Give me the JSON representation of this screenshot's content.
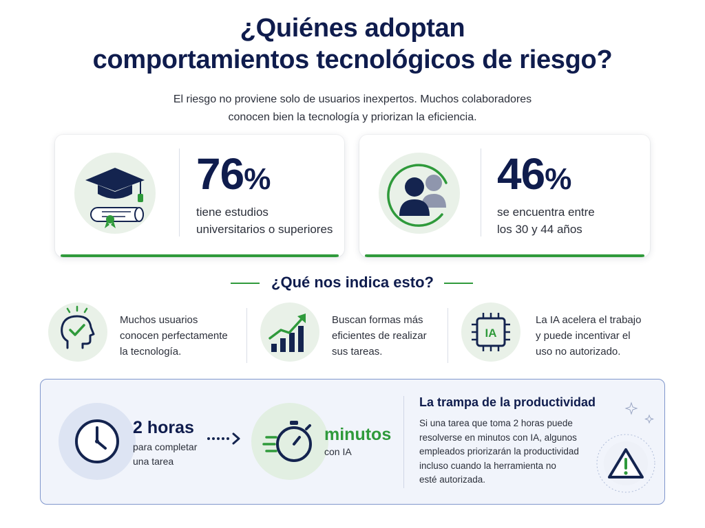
{
  "header": {
    "title_line1": "¿Quiénes adoptan",
    "title_line2": "comportamientos tecnológicos de riesgo?",
    "subtitle_line1": "El riesgo no proviene solo de usuarios inexpertos. Muchos colaboradores",
    "subtitle_line2": "conocen bien la tecnología y priorizan la eficiencia."
  },
  "stats": [
    {
      "icon": "graduation-cap-diploma-icon",
      "value": "76",
      "unit": "%",
      "desc_line1": "tiene estudios",
      "desc_line2": "universitarios o superiores"
    },
    {
      "icon": "people-group-icon",
      "value": "46",
      "unit": "%",
      "desc_line1": "se encuentra entre",
      "desc_line2": "los 30 y 44 años"
    }
  ],
  "section": {
    "heading": "¿Qué nos indica esto?"
  },
  "insights": [
    {
      "icon": "head-check-icon",
      "lines": [
        "Muchos usuarios",
        "conocen perfectamente",
        "la tecnología."
      ]
    },
    {
      "icon": "growth-chart-icon",
      "lines": [
        "Buscan formas más",
        "eficientes de realizar",
        "sus tareas."
      ]
    },
    {
      "icon": "ai-chip-icon",
      "chip_label": "IA",
      "lines": [
        "La IA acelera el trabajo",
        "y puede incentivar el",
        "uso no autorizado."
      ]
    }
  ],
  "productivity": {
    "hours_value": "2 horas",
    "hours_desc_line1": "para completar",
    "hours_desc_line2": "una tarea",
    "minutes_value": "minutos",
    "minutes_desc": "con IA",
    "trap_title": "La trampa de la productividad",
    "trap_lines": [
      "Si una tarea que toma 2 horas puede",
      "resolverse en minutos con IA, algunos",
      "empleados priorizarán la productividad",
      "incluso cuando la herramienta no",
      "esté autorizada."
    ]
  },
  "colors": {
    "navy": "#0f1c4d",
    "green": "#2f9a3b",
    "panel_border": "#7f96cc",
    "panel_bg": "#f1f4fb"
  }
}
